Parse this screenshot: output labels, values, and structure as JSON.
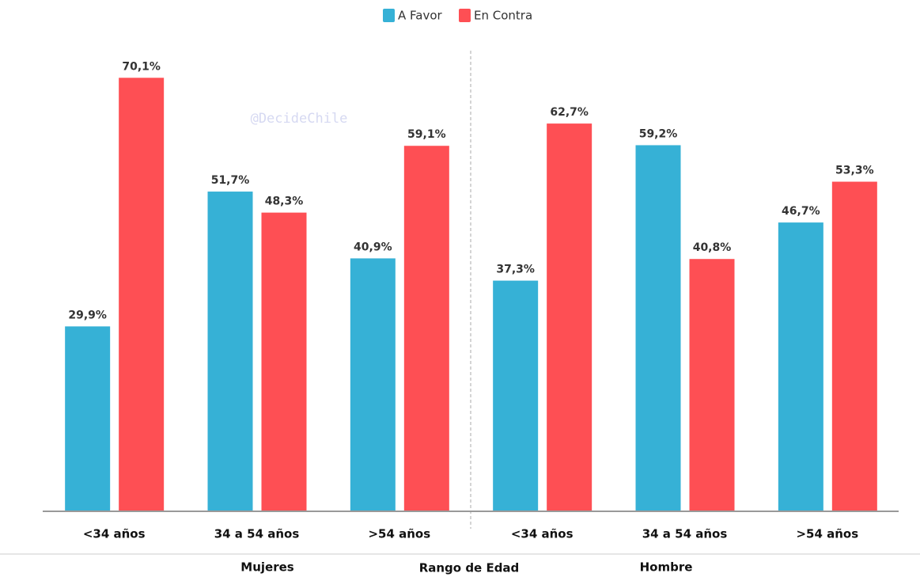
{
  "chart_data": {
    "type": "bar",
    "watermark": "@DecideChile",
    "categories": [
      "<34 años",
      "34 a 54 años",
      ">54 años",
      "<34 años",
      "34 a 54 años",
      ">54 años"
    ],
    "groups": [
      "Mujeres",
      "Hombre"
    ],
    "x_label": "Rango de Edad",
    "series": [
      {
        "name": "A Favor",
        "color": "#36b1d6",
        "values": [
          29.9,
          51.7,
          40.9,
          37.3,
          59.2,
          46.7
        ],
        "value_labels": [
          "29,9%",
          "51,7%",
          "40,9%",
          "37,3%",
          "59,2%",
          "46,7%"
        ]
      },
      {
        "name": "En Contra",
        "color": "#fe4f54",
        "values": [
          70.1,
          48.3,
          59.1,
          62.7,
          40.8,
          53.3
        ],
        "value_labels": [
          "70,1%",
          "48,3%",
          "59,1%",
          "62,7%",
          "40,8%",
          "53,3%"
        ]
      }
    ],
    "ylim": [
      0,
      75
    ],
    "legend": "top"
  }
}
